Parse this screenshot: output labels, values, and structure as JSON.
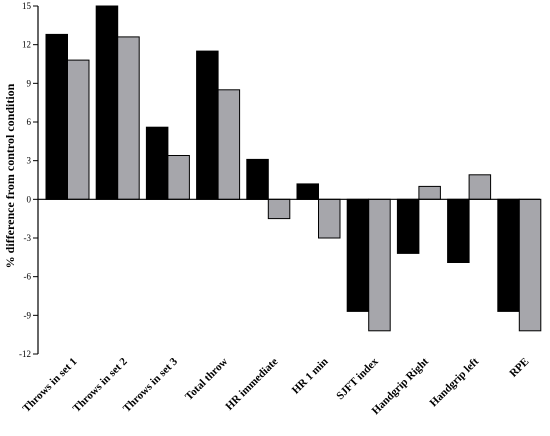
{
  "chart_data": {
    "type": "bar",
    "title": "",
    "xlabel": "",
    "ylabel": "% difference from control condition",
    "ylim": [
      -12,
      15
    ],
    "yticks": [
      -12,
      -9,
      -6,
      -3,
      0,
      3,
      6,
      9,
      12,
      15
    ],
    "grid": false,
    "categories": [
      "Throws in set 1",
      "Throws in set 2",
      "Throws in set 3",
      "Total throw",
      "HR immediate",
      "HR 1 min",
      "SJFT index",
      "Handgrip Right",
      "Handgrip left",
      "RPE"
    ],
    "series": [
      {
        "color": "#000000",
        "values": [
          12.8,
          15.0,
          5.6,
          11.5,
          3.1,
          1.2,
          -8.7,
          -4.2,
          -4.9,
          -8.7
        ]
      },
      {
        "color": "#a6a6ab",
        "values": [
          10.8,
          12.6,
          3.4,
          8.5,
          -1.5,
          -3.0,
          -10.2,
          1.0,
          1.9,
          -10.2
        ]
      }
    ]
  }
}
